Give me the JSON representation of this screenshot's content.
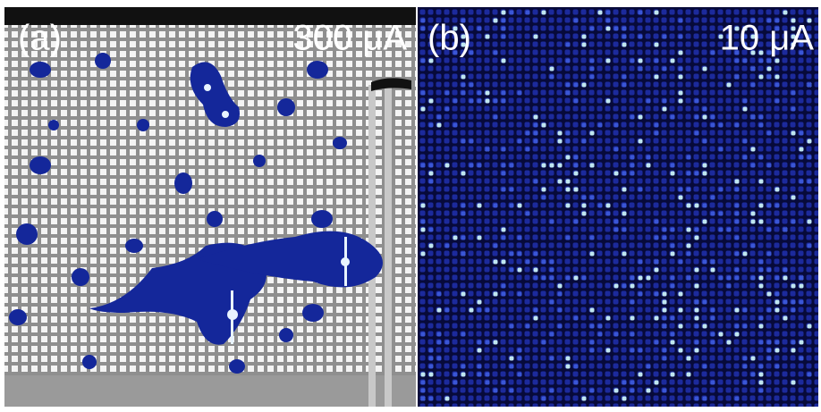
{
  "panels": [
    {
      "label": "(a)",
      "current": "300 μA"
    },
    {
      "label": "(b)",
      "current": "10 μA"
    }
  ]
}
